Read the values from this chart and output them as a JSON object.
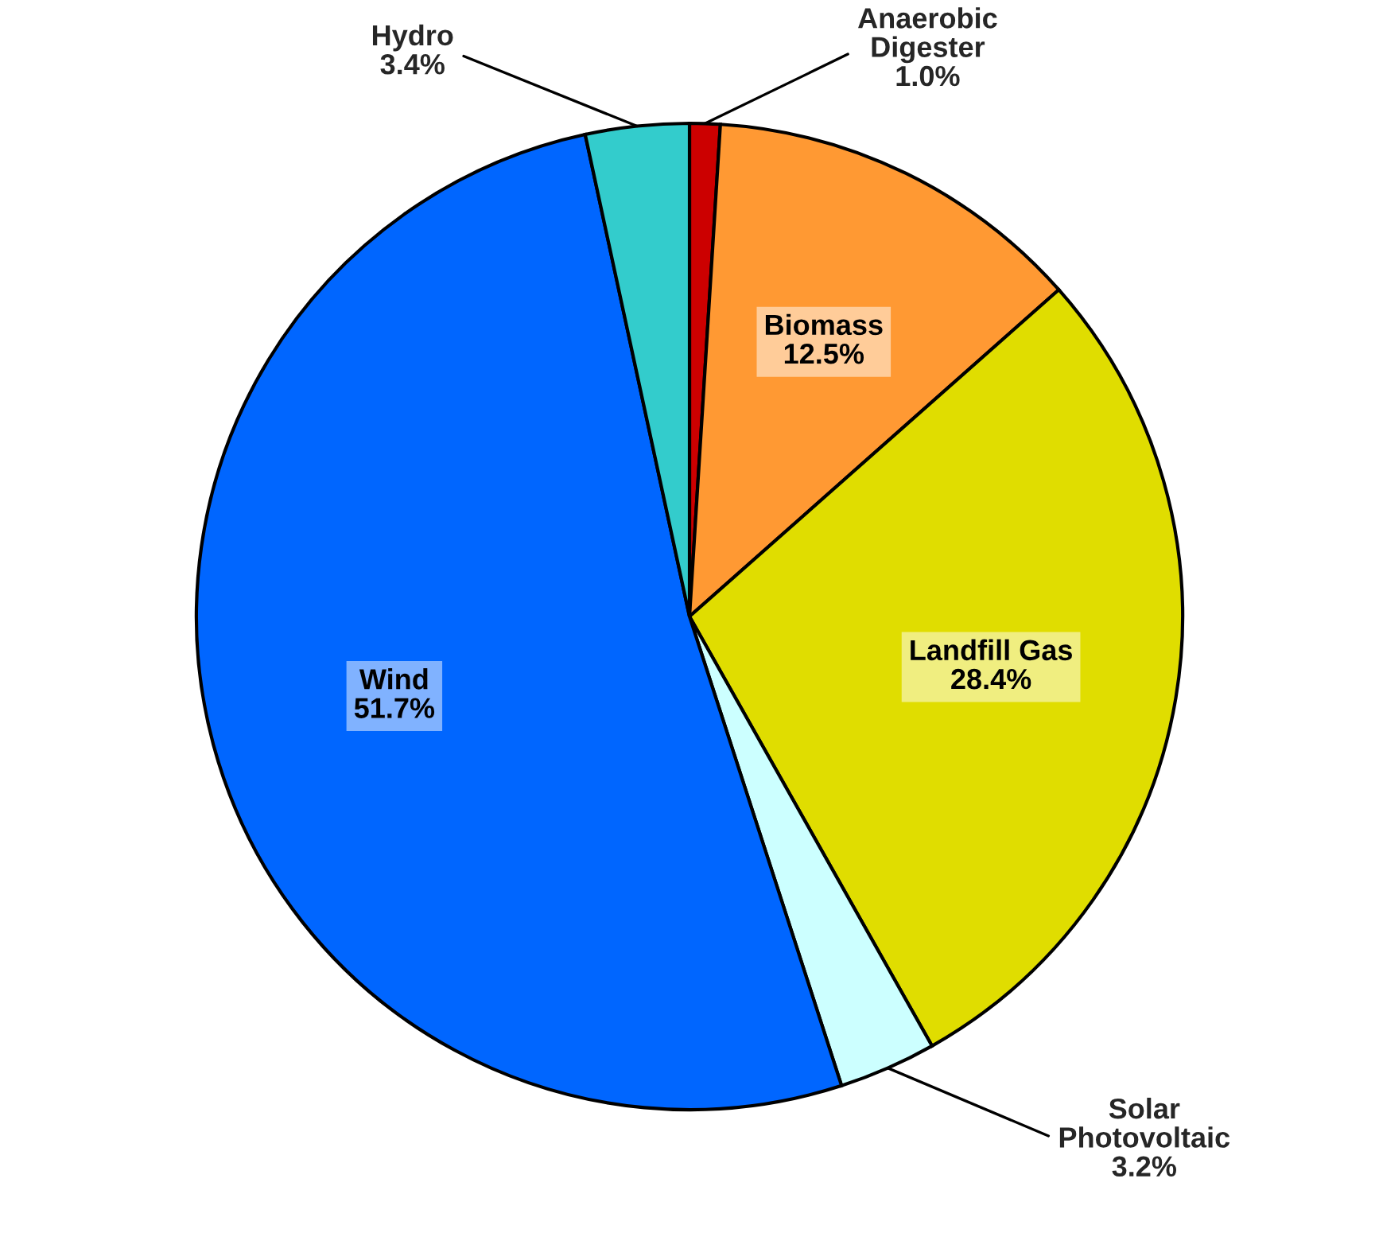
{
  "chart_data": {
    "type": "pie",
    "categories": [
      "Anaerobic Digester",
      "Biomass",
      "Landfill Gas",
      "Solar Photovoltaic",
      "Wind",
      "Hydro"
    ],
    "values": [
      1.0,
      12.5,
      28.4,
      3.2,
      51.7,
      3.4
    ],
    "colors": [
      "#cc0000",
      "#ff9933",
      "#e0dd00",
      "#ccffff",
      "#0066ff",
      "#33cccc"
    ],
    "value_labels": [
      "1.0%",
      "12.5%",
      "28.4%",
      "3.2%",
      "51.7%",
      "3.4%"
    ],
    "legend": false
  }
}
